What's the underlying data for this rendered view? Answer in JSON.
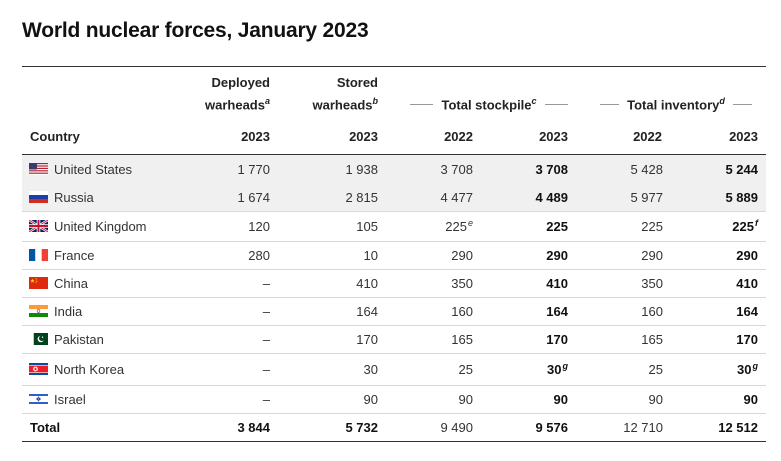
{
  "title": "World nuclear forces, January 2023",
  "headers": {
    "country": "Country",
    "deployed_line1": "Deployed",
    "deployed_line2": "warheads",
    "deployed_note": "a",
    "stored_line1": "Stored",
    "stored_line2": "warheads",
    "stored_note": "b",
    "stockpile": "Total stockpile",
    "stockpile_note": "c",
    "inventory": "Total inventory",
    "inventory_note": "d",
    "year_deployed": "2023",
    "year_stored": "2023",
    "year_stock_2022": "2022",
    "year_stock_2023": "2023",
    "year_inv_2022": "2022",
    "year_inv_2023": "2023"
  },
  "rows": [
    {
      "country": "United States",
      "flag": "us-flag-icon",
      "deployed": "1 770",
      "stored": "1 938",
      "stock2022": "3 708",
      "stock2022_note": "",
      "stock2023": "3 708",
      "stock2023_note": "",
      "inv2022": "5 428",
      "inv2023": "5 244",
      "inv2023_note": ""
    },
    {
      "country": "Russia",
      "flag": "russia-flag-icon",
      "deployed": "1 674",
      "stored": "2 815",
      "stock2022": "4 477",
      "stock2022_note": "",
      "stock2023": "4 489",
      "stock2023_note": "",
      "inv2022": "5 977",
      "inv2023": "5 889",
      "inv2023_note": ""
    },
    {
      "country": "United Kingdom",
      "flag": "uk-flag-icon",
      "deployed": "120",
      "stored": "105",
      "stock2022": "225",
      "stock2022_note": "e",
      "stock2023": "225",
      "stock2023_note": "",
      "inv2022": "225",
      "inv2023": "225",
      "inv2023_note": "f"
    },
    {
      "country": "France",
      "flag": "france-flag-icon",
      "deployed": "280",
      "stored": "10",
      "stock2022": "290",
      "stock2022_note": "",
      "stock2023": "290",
      "stock2023_note": "",
      "inv2022": "290",
      "inv2023": "290",
      "inv2023_note": ""
    },
    {
      "country": "China",
      "flag": "china-flag-icon",
      "deployed": "–",
      "stored": "410",
      "stock2022": "350",
      "stock2022_note": "",
      "stock2023": "410",
      "stock2023_note": "",
      "inv2022": "350",
      "inv2023": "410",
      "inv2023_note": ""
    },
    {
      "country": "India",
      "flag": "india-flag-icon",
      "deployed": "–",
      "stored": "164",
      "stock2022": "160",
      "stock2022_note": "",
      "stock2023": "164",
      "stock2023_note": "",
      "inv2022": "160",
      "inv2023": "164",
      "inv2023_note": ""
    },
    {
      "country": "Pakistan",
      "flag": "pakistan-flag-icon",
      "deployed": "–",
      "stored": "170",
      "stock2022": "165",
      "stock2022_note": "",
      "stock2023": "170",
      "stock2023_note": "",
      "inv2022": "165",
      "inv2023": "170",
      "inv2023_note": ""
    },
    {
      "country": "North Korea",
      "flag": "north-korea-flag-icon",
      "deployed": "–",
      "stored": "30",
      "stock2022": "25",
      "stock2022_note": "",
      "stock2023": "30",
      "stock2023_note": "g",
      "inv2022": "25",
      "inv2023": "30",
      "inv2023_note": "g"
    },
    {
      "country": "Israel",
      "flag": "israel-flag-icon",
      "deployed": "–",
      "stored": "90",
      "stock2022": "90",
      "stock2022_note": "",
      "stock2023": "90",
      "stock2023_note": "",
      "inv2022": "90",
      "inv2023": "90",
      "inv2023_note": ""
    }
  ],
  "total": {
    "label": "Total",
    "deployed": "3 844",
    "stored": "5 732",
    "stock2022": "9 490",
    "stock2023": "9 576",
    "inv2022": "12 710",
    "inv2023": "12 512"
  },
  "colors": {
    "rule": "#333333",
    "row_shade": "#f0f0f0",
    "group_line": "#999999"
  }
}
